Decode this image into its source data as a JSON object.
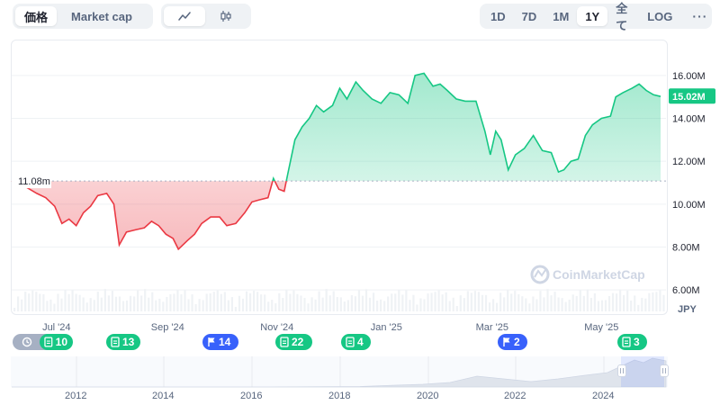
{
  "toolbar": {
    "metric_tabs": [
      {
        "label": "価格",
        "active": true
      },
      {
        "label": "Market cap",
        "active": false
      }
    ],
    "view_modes": [
      {
        "icon": "line-chart-icon",
        "active": true
      },
      {
        "icon": "candlestick-icon",
        "active": false
      }
    ],
    "ranges": [
      {
        "label": "1D",
        "active": false
      },
      {
        "label": "7D",
        "active": false
      },
      {
        "label": "1M",
        "active": false
      },
      {
        "label": "1Y",
        "active": true
      },
      {
        "label": "全て",
        "active": false
      }
    ],
    "log_label": "LOG",
    "more_label": "···"
  },
  "colors": {
    "up": "#16c784",
    "down": "#ea3943",
    "flag": "#3861fb",
    "grid": "#eff2f5"
  },
  "chart_data": {
    "type": "area",
    "baseline_label": "11.08m",
    "baseline_value": 11.08,
    "current_value_label": "15.02M",
    "current_value": 15.02,
    "y_unit": "M JPY",
    "currency_label": "JPY",
    "ylim": [
      5.0,
      17.0
    ],
    "yticks": [
      {
        "value": 6,
        "label": "6.00M"
      },
      {
        "value": 8,
        "label": "8.00M"
      },
      {
        "value": 10,
        "label": "10.00M"
      },
      {
        "value": 12,
        "label": "12.00M"
      },
      {
        "value": 14,
        "label": "14.00M"
      },
      {
        "value": 16,
        "label": "16.00M"
      }
    ],
    "xticks": [
      {
        "x": "2024-07",
        "label": "Jul '24"
      },
      {
        "x": "2024-09",
        "label": "Sep '24"
      },
      {
        "x": "2024-11",
        "label": "Nov '24"
      },
      {
        "x": "2025-01",
        "label": "Jan '25"
      },
      {
        "x": "2025-03",
        "label": "Mar '25"
      },
      {
        "x": "2025-05",
        "label": "May '25"
      }
    ],
    "xlim": [
      "2024-06-06",
      "2025-06-06"
    ],
    "points": [
      [
        "2024-06-06",
        11.08
      ],
      [
        "2024-06-14",
        10.8
      ],
      [
        "2024-06-20",
        10.5
      ],
      [
        "2024-06-25",
        10.3
      ],
      [
        "2024-06-30",
        9.9
      ],
      [
        "2024-07-04",
        9.1
      ],
      [
        "2024-07-08",
        9.3
      ],
      [
        "2024-07-12",
        9.0
      ],
      [
        "2024-07-16",
        9.6
      ],
      [
        "2024-07-20",
        9.9
      ],
      [
        "2024-07-24",
        10.4
      ],
      [
        "2024-07-29",
        10.5
      ],
      [
        "2024-08-02",
        10.0
      ],
      [
        "2024-08-05",
        8.1
      ],
      [
        "2024-08-09",
        8.7
      ],
      [
        "2024-08-14",
        8.8
      ],
      [
        "2024-08-19",
        8.9
      ],
      [
        "2024-08-23",
        9.2
      ],
      [
        "2024-08-27",
        9.0
      ],
      [
        "2024-08-31",
        8.6
      ],
      [
        "2024-09-04",
        8.4
      ],
      [
        "2024-09-07",
        7.9
      ],
      [
        "2024-09-12",
        8.3
      ],
      [
        "2024-09-16",
        8.6
      ],
      [
        "2024-09-20",
        9.1
      ],
      [
        "2024-09-25",
        9.4
      ],
      [
        "2024-09-30",
        9.4
      ],
      [
        "2024-10-04",
        9.0
      ],
      [
        "2024-10-09",
        9.1
      ],
      [
        "2024-10-14",
        9.6
      ],
      [
        "2024-10-18",
        10.1
      ],
      [
        "2024-10-22",
        10.2
      ],
      [
        "2024-10-27",
        10.3
      ],
      [
        "2024-10-30",
        11.2
      ],
      [
        "2024-11-02",
        10.7
      ],
      [
        "2024-11-05",
        10.6
      ],
      [
        "2024-11-07",
        11.4
      ],
      [
        "2024-11-11",
        13.0
      ],
      [
        "2024-11-15",
        13.6
      ],
      [
        "2024-11-19",
        14.0
      ],
      [
        "2024-11-23",
        14.6
      ],
      [
        "2024-11-27",
        14.3
      ],
      [
        "2024-12-02",
        14.6
      ],
      [
        "2024-12-06",
        15.4
      ],
      [
        "2024-12-10",
        14.9
      ],
      [
        "2024-12-15",
        15.7
      ],
      [
        "2024-12-19",
        15.3
      ],
      [
        "2024-12-24",
        14.9
      ],
      [
        "2024-12-29",
        14.7
      ],
      [
        "2025-01-03",
        15.2
      ],
      [
        "2025-01-08",
        15.1
      ],
      [
        "2025-01-13",
        14.7
      ],
      [
        "2025-01-17",
        16.0
      ],
      [
        "2025-01-22",
        16.1
      ],
      [
        "2025-01-27",
        15.5
      ],
      [
        "2025-01-31",
        15.6
      ],
      [
        "2025-02-04",
        15.3
      ],
      [
        "2025-02-09",
        14.9
      ],
      [
        "2025-02-14",
        14.8
      ],
      [
        "2025-02-20",
        14.8
      ],
      [
        "2025-02-25",
        13.4
      ],
      [
        "2025-02-28",
        12.3
      ],
      [
        "2025-03-03",
        13.4
      ],
      [
        "2025-03-06",
        13.0
      ],
      [
        "2025-03-10",
        11.6
      ],
      [
        "2025-03-14",
        12.3
      ],
      [
        "2025-03-19",
        12.6
      ],
      [
        "2025-03-24",
        13.2
      ],
      [
        "2025-03-29",
        12.5
      ],
      [
        "2025-04-03",
        12.4
      ],
      [
        "2025-04-07",
        11.5
      ],
      [
        "2025-04-10",
        11.6
      ],
      [
        "2025-04-14",
        12.0
      ],
      [
        "2025-04-18",
        12.1
      ],
      [
        "2025-04-22",
        13.2
      ],
      [
        "2025-04-26",
        13.7
      ],
      [
        "2025-05-01",
        14.0
      ],
      [
        "2025-05-06",
        14.1
      ],
      [
        "2025-05-09",
        15.0
      ],
      [
        "2025-05-13",
        15.2
      ],
      [
        "2025-05-18",
        15.4
      ],
      [
        "2025-05-22",
        15.6
      ],
      [
        "2025-05-26",
        15.3
      ],
      [
        "2025-05-30",
        15.1
      ],
      [
        "2025-06-03",
        15.02
      ]
    ],
    "watermark": "CoinMarketCap"
  },
  "events": [
    {
      "type": "news",
      "count": "10"
    },
    {
      "type": "news",
      "count": "13"
    },
    {
      "type": "flag",
      "count": "14"
    },
    {
      "type": "news",
      "count": "22"
    },
    {
      "type": "news",
      "count": "4"
    },
    {
      "type": "flag",
      "count": "2"
    },
    {
      "type": "news",
      "count": "3"
    }
  ],
  "navigator": {
    "years": [
      "2012",
      "2014",
      "2016",
      "2018",
      "2020",
      "2022",
      "2024"
    ]
  }
}
